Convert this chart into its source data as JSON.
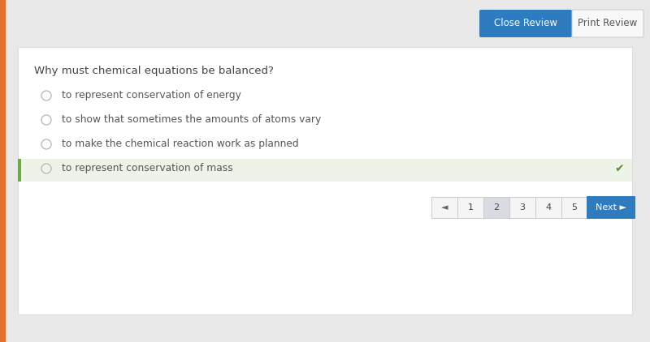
{
  "bg_outer": "#d0d0d0",
  "bg_inner": "#e8e8e8",
  "card_color": "#ffffff",
  "question": "Why must chemical equations be balanced?",
  "options": [
    "to represent conservation of energy",
    "to show that sometimes the amounts of atoms vary",
    "to make the chemical reaction work as planned",
    "to represent conservation of mass"
  ],
  "correct_index": 3,
  "highlight_color": "#eef3e8",
  "check_color": "#5a8a3a",
  "radio_color": "#bbbbbb",
  "question_color": "#444444",
  "option_color": "#555555",
  "close_btn_color": "#2e7bbf",
  "close_btn_text": "Close Review",
  "print_btn_color": "#f8f8f8",
  "print_btn_text": "Print Review",
  "btn_text_color_close": "#ffffff",
  "btn_text_color_print": "#555555",
  "nav_pages": [
    "1",
    "2",
    "3",
    "4",
    "5"
  ],
  "nav_active": 1,
  "nav_active_color": "#d8dce2",
  "nav_inactive_color": "#f5f5f5",
  "nav_btn_color": "#2e7bbf",
  "nav_btn_text": "Next ►",
  "nav_prev_text": "◄",
  "nav_btn_text_color": "#ffffff",
  "nav_border_color": "#cccccc",
  "left_accent_color": "#6aaa44",
  "orange_strip_color": "#e07030"
}
